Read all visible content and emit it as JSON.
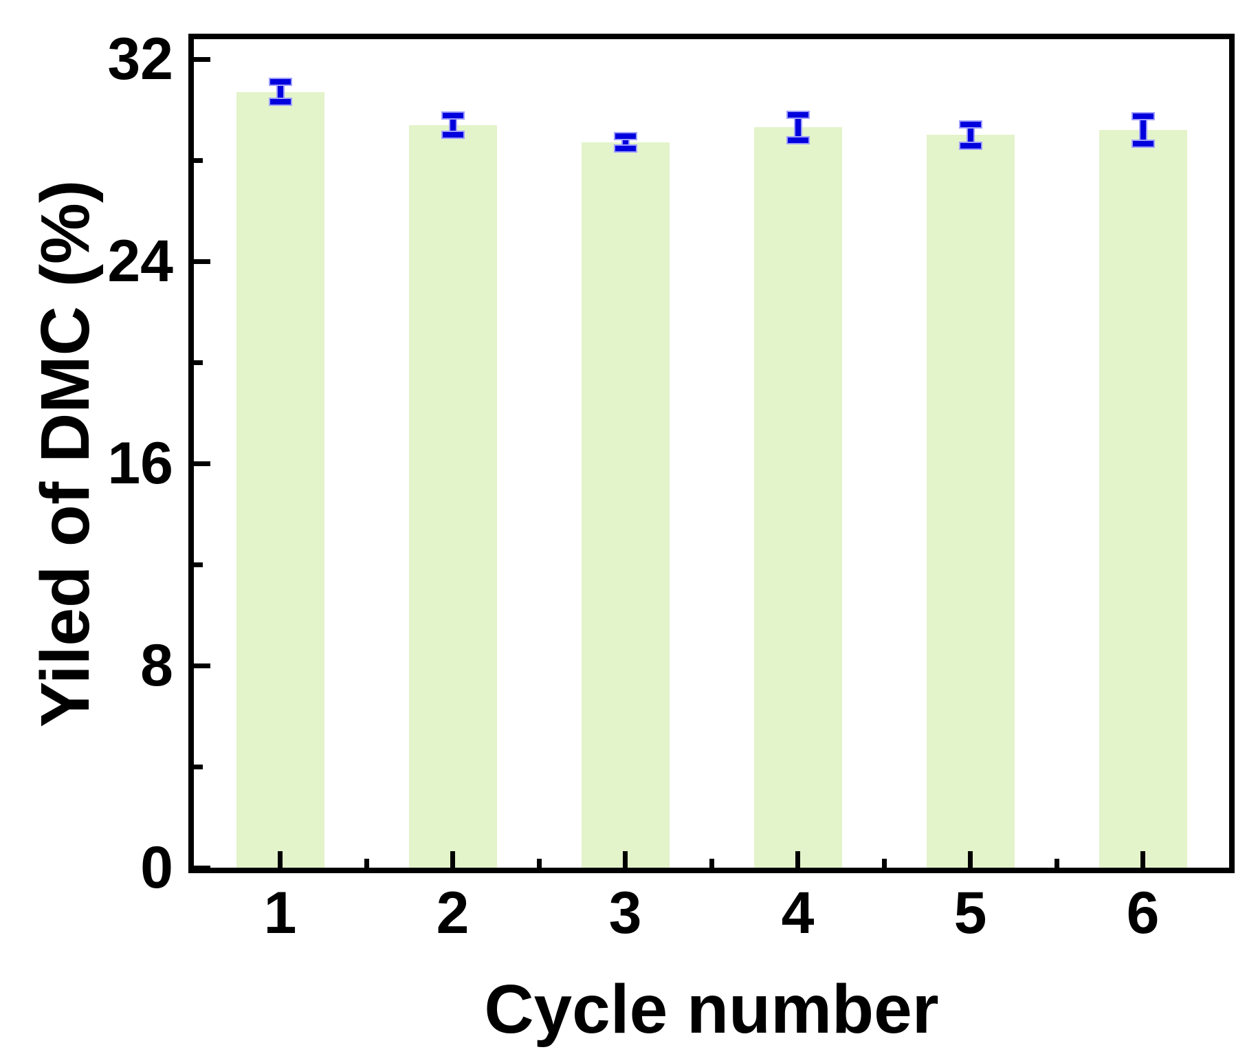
{
  "chart_data": {
    "type": "bar",
    "title": "",
    "xlabel": "Cycle number",
    "ylabel": "Yiled of DMC (%)",
    "categories": [
      "1",
      "2",
      "3",
      "4",
      "5",
      "6"
    ],
    "series": [
      {
        "name": "Yield of DMC",
        "values": [
          30.7,
          29.4,
          28.7,
          29.3,
          29.0,
          29.2
        ],
        "errors": [
          0.4,
          0.38,
          0.25,
          0.5,
          0.42,
          0.55
        ]
      }
    ],
    "ylim": [
      0,
      32
    ],
    "y_major_ticks": [
      0,
      8,
      16,
      24,
      32
    ],
    "y_minor_ticks": [
      4,
      12,
      20,
      28
    ],
    "x_minor_ticks_between_categories": true,
    "grid": false,
    "legend": "none",
    "colors": {
      "bar_fill": "#E3F3CA",
      "error_bar": "#0101DD",
      "error_bar_halo": "#9E9EFC",
      "axis": "#000000",
      "background": "#FFFFFF"
    }
  }
}
